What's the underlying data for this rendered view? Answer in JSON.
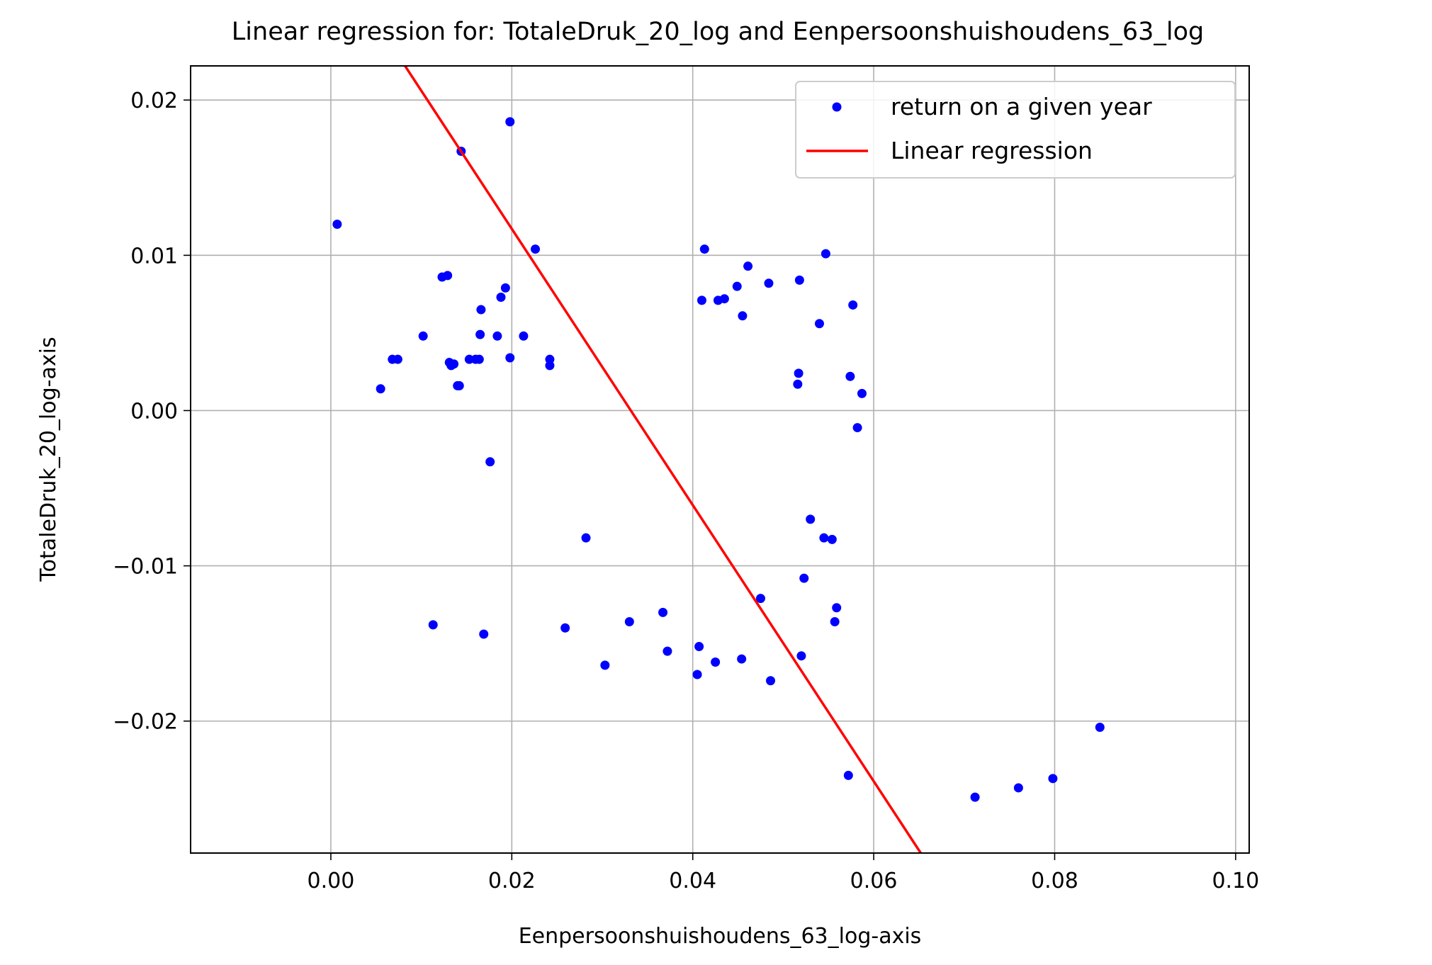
{
  "chart_data": {
    "type": "scatter",
    "title": "Linear regression for: TotaleDruk_20_log and Eenpersoonshuishoudens_63_log",
    "xlabel": "Eenpersoonshuishoudens_63_log-axis",
    "ylabel": "TotaleDruk_20_log-axis",
    "xlim": [
      -0.0155,
      0.1015
    ],
    "ylim": [
      -0.0285,
      0.0222
    ],
    "xticks": [
      0.0,
      0.02,
      0.04,
      0.06,
      0.08,
      0.1
    ],
    "xtick_labels": [
      "0.00",
      "0.02",
      "0.04",
      "0.06",
      "0.08",
      "0.10"
    ],
    "yticks": [
      -0.02,
      -0.01,
      0.0,
      0.01,
      0.02
    ],
    "ytick_labels": [
      "−0.02",
      "−0.01",
      "0.00",
      "0.01",
      "0.02"
    ],
    "grid": true,
    "legend_position": "top-right",
    "colors": {
      "points": "#0000ff",
      "regression": "#ff0000"
    },
    "series": [
      {
        "name": "return on a given year",
        "type": "scatter",
        "points": [
          [
            0.0007,
            0.012
          ],
          [
            0.0055,
            0.0014
          ],
          [
            0.0068,
            0.0033
          ],
          [
            0.0074,
            0.0033
          ],
          [
            0.0102,
            0.0048
          ],
          [
            0.0113,
            -0.0138
          ],
          [
            0.0123,
            0.0086
          ],
          [
            0.0129,
            0.0087
          ],
          [
            0.0131,
            0.0031
          ],
          [
            0.0133,
            0.0029
          ],
          [
            0.0136,
            0.003
          ],
          [
            0.014,
            0.0016
          ],
          [
            0.0142,
            0.0016
          ],
          [
            0.0144,
            0.0167
          ],
          [
            0.0153,
            0.0033
          ],
          [
            0.016,
            0.0033
          ],
          [
            0.0164,
            0.0033
          ],
          [
            0.0165,
            0.0049
          ],
          [
            0.0166,
            0.0065
          ],
          [
            0.0169,
            -0.0144
          ],
          [
            0.0176,
            -0.0033
          ],
          [
            0.0184,
            0.0048
          ],
          [
            0.0188,
            0.0073
          ],
          [
            0.0193,
            0.0079
          ],
          [
            0.0198,
            0.0186
          ],
          [
            0.0198,
            0.0034
          ],
          [
            0.0213,
            0.0048
          ],
          [
            0.0226,
            0.0104
          ],
          [
            0.0242,
            0.0033
          ],
          [
            0.0242,
            0.0029
          ],
          [
            0.0259,
            -0.014
          ],
          [
            0.0282,
            -0.0082
          ],
          [
            0.0303,
            -0.0164
          ],
          [
            0.033,
            -0.0136
          ],
          [
            0.0367,
            -0.013
          ],
          [
            0.0372,
            -0.0155
          ],
          [
            0.0405,
            -0.017
          ],
          [
            0.0407,
            -0.0152
          ],
          [
            0.041,
            0.0071
          ],
          [
            0.0413,
            0.0104
          ],
          [
            0.0425,
            -0.0162
          ],
          [
            0.0428,
            0.0071
          ],
          [
            0.0435,
            0.0072
          ],
          [
            0.0449,
            0.008
          ],
          [
            0.0454,
            -0.016
          ],
          [
            0.0455,
            0.0061
          ],
          [
            0.0461,
            0.0093
          ],
          [
            0.0475,
            -0.0121
          ],
          [
            0.0484,
            0.0082
          ],
          [
            0.0486,
            -0.0174
          ],
          [
            0.0516,
            0.0017
          ],
          [
            0.0517,
            0.0024
          ],
          [
            0.0518,
            0.0084
          ],
          [
            0.052,
            -0.0158
          ],
          [
            0.0523,
            -0.0108
          ],
          [
            0.053,
            -0.007
          ],
          [
            0.054,
            0.0056
          ],
          [
            0.0545,
            -0.0082
          ],
          [
            0.0547,
            0.0101
          ],
          [
            0.0554,
            -0.0083
          ],
          [
            0.0557,
            -0.0136
          ],
          [
            0.0559,
            -0.0127
          ],
          [
            0.0572,
            -0.0235
          ],
          [
            0.0574,
            0.0022
          ],
          [
            0.0577,
            0.0068
          ],
          [
            0.0582,
            -0.0011
          ],
          [
            0.0587,
            0.0011
          ],
          [
            0.0712,
            -0.0249
          ],
          [
            0.076,
            -0.0243
          ],
          [
            0.0798,
            -0.0237
          ],
          [
            0.085,
            -0.0204
          ]
        ]
      },
      {
        "name": "Linear regression",
        "type": "line",
        "x": [
          0.0082,
          0.0652
        ],
        "y": [
          0.0222,
          -0.0285
        ]
      }
    ]
  }
}
